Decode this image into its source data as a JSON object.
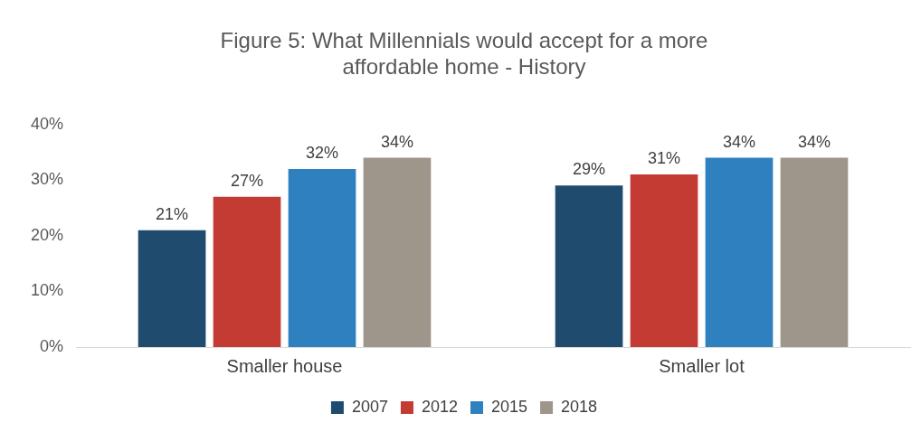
{
  "chart_data": {
    "type": "bar",
    "title": "Figure 5: What Millennials would accept for a more affordable home - History",
    "categories": [
      "Smaller house",
      "Smaller lot"
    ],
    "series": [
      {
        "name": "2007",
        "color": "#1f4b6e",
        "values": [
          21,
          29
        ],
        "value_labels": [
          "21%",
          "29%"
        ]
      },
      {
        "name": "2012",
        "color": "#c43b33",
        "values": [
          27,
          31
        ],
        "value_labels": [
          "27%",
          "31%"
        ]
      },
      {
        "name": "2015",
        "color": "#2f80bf",
        "values": [
          32,
          34
        ],
        "value_labels": [
          "32%",
          "34%"
        ]
      },
      {
        "name": "2018",
        "color": "#9e968b",
        "values": [
          34,
          34
        ],
        "value_labels": [
          "34%",
          "34%"
        ]
      }
    ],
    "ylim": [
      0,
      40
    ],
    "yticks": [
      {
        "value": 0,
        "label": "0%"
      },
      {
        "value": 10,
        "label": "10%"
      },
      {
        "value": 20,
        "label": "20%"
      },
      {
        "value": 30,
        "label": "30%"
      },
      {
        "value": 40,
        "label": "40%"
      }
    ],
    "grid": false,
    "legend": "bottom"
  }
}
